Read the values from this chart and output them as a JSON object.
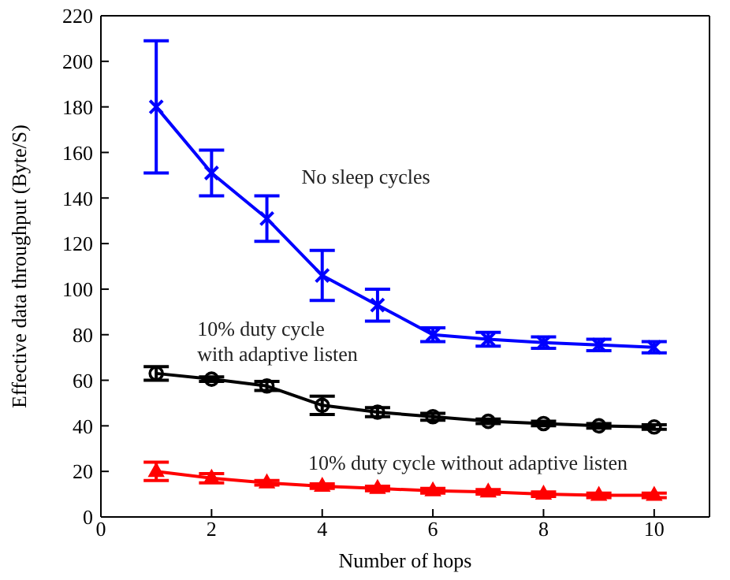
{
  "chart_data": {
    "type": "line",
    "xlabel": "Number of hops",
    "ylabel": "Effective data throughput (Byte/S)",
    "x": [
      1,
      2,
      3,
      4,
      5,
      6,
      7,
      8,
      9,
      10
    ],
    "series": [
      {
        "name": "No sleep cycles",
        "color": "#0000ff",
        "marker": "cross",
        "values": [
          180,
          151,
          131,
          106,
          93,
          80,
          78,
          76.5,
          75.5,
          74.5
        ],
        "errors": [
          29,
          10,
          10,
          11,
          7,
          3,
          3,
          2.5,
          2.5,
          2.5
        ]
      },
      {
        "name": "10% duty cycle with adaptive listen",
        "color": "#000000",
        "marker": "circle",
        "values": [
          63,
          60.5,
          57.5,
          49,
          46,
          44,
          42,
          41,
          40,
          39.5
        ],
        "errors": [
          3,
          1,
          2,
          4,
          2,
          1.5,
          1,
          1,
          1,
          1
        ]
      },
      {
        "name": "10% duty cycle without adaptive listen",
        "color": "#ff0000",
        "marker": "triangle",
        "values": [
          20,
          17,
          15,
          13.5,
          12.5,
          11.5,
          11,
          10,
          9.5,
          9.5
        ],
        "errors": [
          4,
          2,
          1,
          1,
          1,
          1,
          1,
          1,
          1,
          1
        ]
      }
    ],
    "xlim": [
      0,
      11
    ],
    "xticks": [
      0,
      2,
      4,
      6,
      8,
      10
    ],
    "ylim": [
      0,
      220
    ],
    "yticks": [
      0,
      20,
      40,
      60,
      80,
      100,
      120,
      140,
      160,
      180,
      200,
      220
    ],
    "grid": false,
    "legend": false,
    "line_style": "solid"
  }
}
